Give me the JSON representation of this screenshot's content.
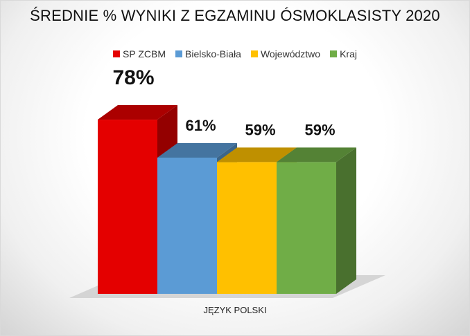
{
  "chart_data": {
    "type": "bar",
    "title": "ŚREDNIE % WYNIKI Z EGZAMINU ÓSMOKLASISTY 2020",
    "categories": [
      "JĘZYK POLSKI"
    ],
    "series": [
      {
        "name": "SP ZCBM",
        "values": [
          78
        ],
        "label": "78%",
        "color": "#e40000"
      },
      {
        "name": "Bielsko-Biała",
        "values": [
          61
        ],
        "label": "61%",
        "color": "#5b9bd5"
      },
      {
        "name": "Województwo",
        "values": [
          59
        ],
        "label": "59%",
        "color": "#ffc000"
      },
      {
        "name": "Kraj",
        "values": [
          59
        ],
        "label": "59%",
        "color": "#70ad47"
      }
    ],
    "ylim": [
      0,
      100
    ],
    "legend": "top",
    "grid": false,
    "style": "3d-column"
  }
}
